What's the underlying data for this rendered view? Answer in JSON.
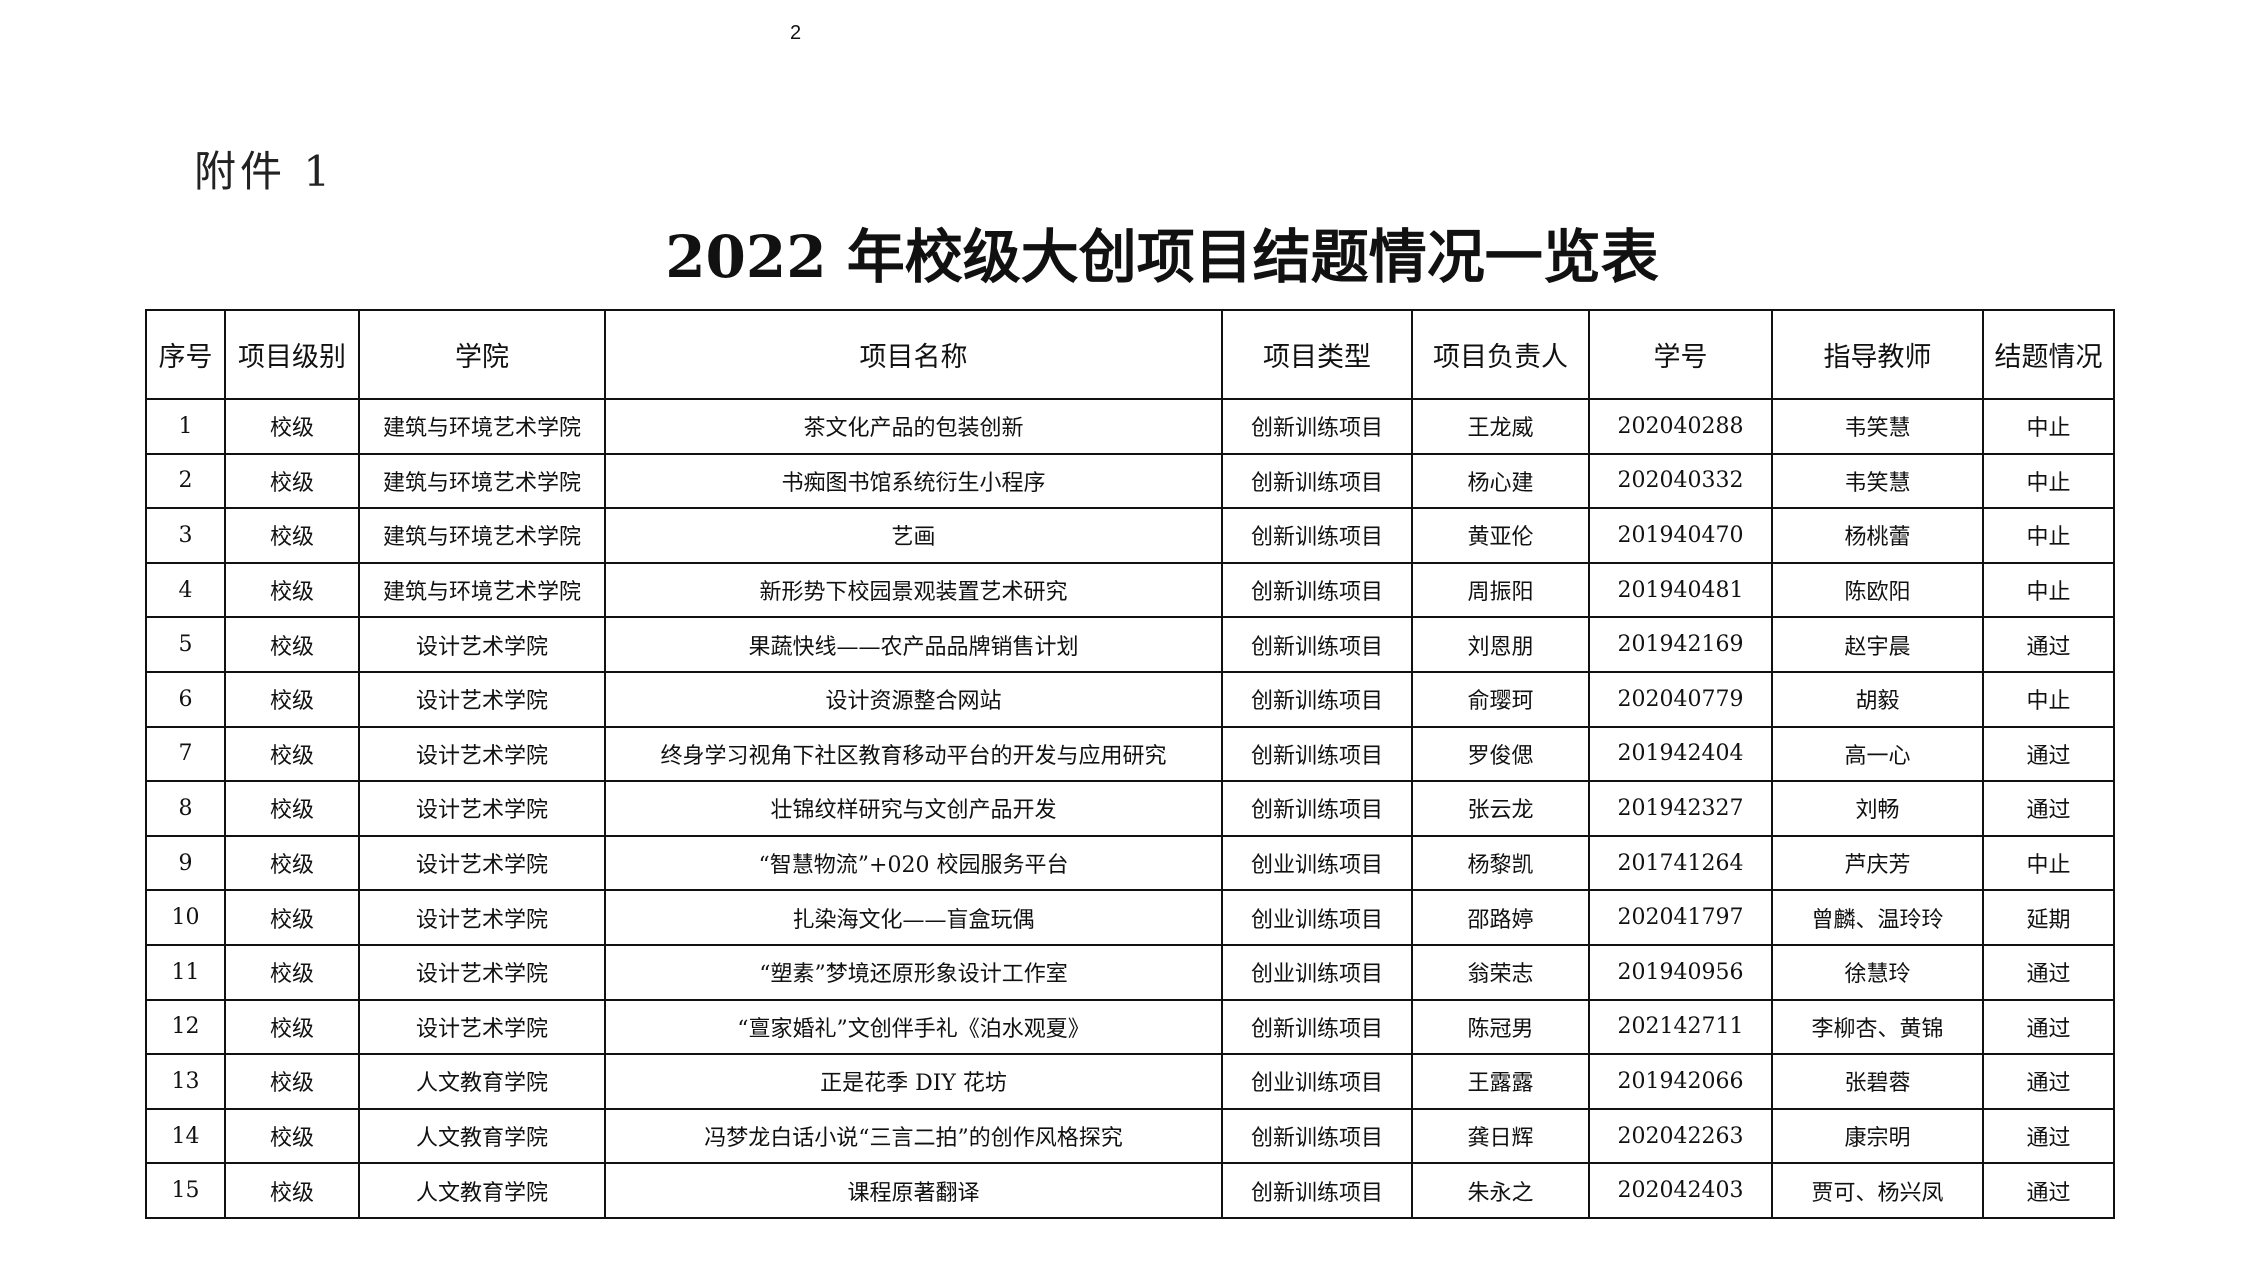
{
  "page_number": "2",
  "attachment_label": "附件 1",
  "title": "2022 年校级大创项目结题情况一览表",
  "table": {
    "headers": [
      "序号",
      "项目级别",
      "学院",
      "项目名称",
      "项目类型",
      "项目负责人",
      "学号",
      "指导教师",
      "结题情况"
    ],
    "rows": [
      [
        "1",
        "校级",
        "建筑与环境艺术学院",
        "茶文化产品的包装创新",
        "创新训练项目",
        "王龙威",
        "202040288",
        "韦笑慧",
        "中止"
      ],
      [
        "2",
        "校级",
        "建筑与环境艺术学院",
        "书痴图书馆系统衍生小程序",
        "创新训练项目",
        "杨心建",
        "202040332",
        "韦笑慧",
        "中止"
      ],
      [
        "3",
        "校级",
        "建筑与环境艺术学院",
        "艺画",
        "创新训练项目",
        "黄亚伦",
        "201940470",
        "杨桃蕾",
        "中止"
      ],
      [
        "4",
        "校级",
        "建筑与环境艺术学院",
        "新形势下校园景观装置艺术研究",
        "创新训练项目",
        "周振阳",
        "201940481",
        "陈欧阳",
        "中止"
      ],
      [
        "5",
        "校级",
        "设计艺术学院",
        "果蔬快线——农产品品牌销售计划",
        "创新训练项目",
        "刘恩朋",
        "201942169",
        "赵宇晨",
        "通过"
      ],
      [
        "6",
        "校级",
        "设计艺术学院",
        "设计资源整合网站",
        "创新训练项目",
        "俞璎珂",
        "202040779",
        "胡毅",
        "中止"
      ],
      [
        "7",
        "校级",
        "设计艺术学院",
        "终身学习视角下社区教育移动平台的开发与应用研究",
        "创新训练项目",
        "罗俊偲",
        "201942404",
        "高一心",
        "通过"
      ],
      [
        "8",
        "校级",
        "设计艺术学院",
        "壮锦纹样研究与文创产品开发",
        "创新训练项目",
        "张云龙",
        "201942327",
        "刘畅",
        "通过"
      ],
      [
        "9",
        "校级",
        "设计艺术学院",
        "“智慧物流”+020 校园服务平台",
        "创业训练项目",
        "杨黎凯",
        "201741264",
        "芦庆芳",
        "中止"
      ],
      [
        "10",
        "校级",
        "设计艺术学院",
        "扎染海文化——盲盒玩偶",
        "创业训练项目",
        "邵路婷",
        "202041797",
        "曾麟、温玲玲",
        "延期"
      ],
      [
        "11",
        "校级",
        "设计艺术学院",
        "“塑素”梦境还原形象设计工作室",
        "创业训练项目",
        "翁荣志",
        "201940956",
        "徐慧玲",
        "通过"
      ],
      [
        "12",
        "校级",
        "设计艺术学院",
        "“亶家婚礼”文创伴手礼《泊水观夏》",
        "创新训练项目",
        "陈冠男",
        "202142711",
        "李柳杏、黄锦",
        "通过"
      ],
      [
        "13",
        "校级",
        "人文教育学院",
        "正是花季 DIY 花坊",
        "创业训练项目",
        "王露露",
        "201942066",
        "张碧蓉",
        "通过"
      ],
      [
        "14",
        "校级",
        "人文教育学院",
        "冯梦龙白话小说“三言二拍”的创作风格探究",
        "创新训练项目",
        "龚日辉",
        "202042263",
        "康宗明",
        "通过"
      ],
      [
        "15",
        "校级",
        "人文教育学院",
        "课程原著翻译",
        "创新训练项目",
        "朱永之",
        "202042403",
        "贾可、杨兴凤",
        "通过"
      ]
    ]
  }
}
